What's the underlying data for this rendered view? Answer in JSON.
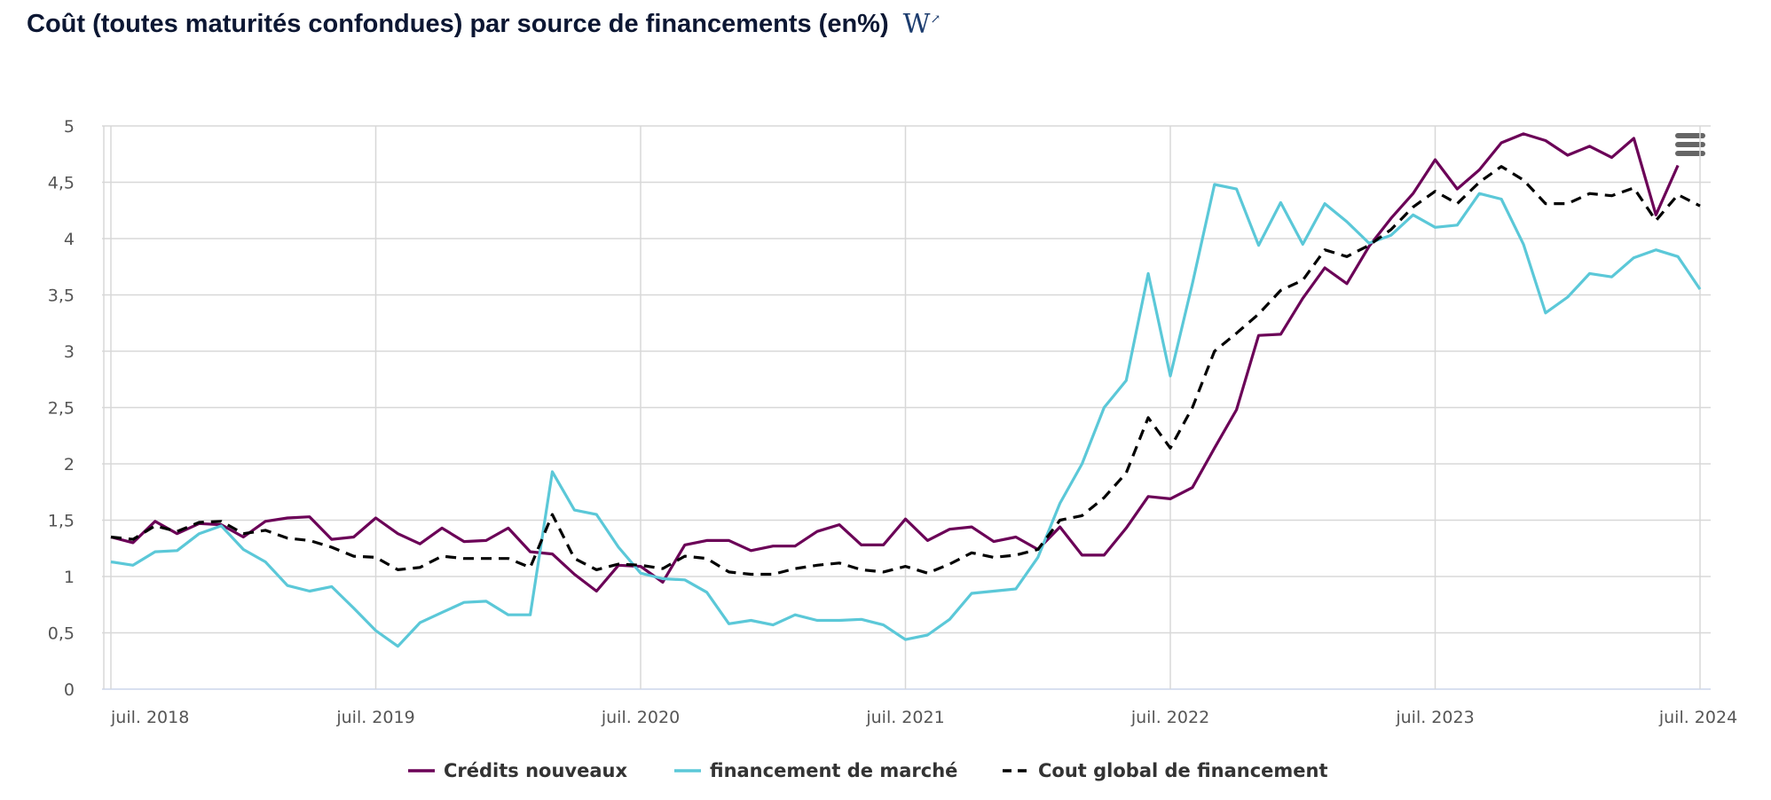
{
  "title": "Coût (toutes maturités confondues) par source de financements (en%)",
  "logo_text": "W",
  "menu_icon": "hamburger-menu-icon",
  "chart_data": {
    "type": "line",
    "title": "Coût (toutes maturités confondues) par source de financements (en%)",
    "x_start": "2018-07",
    "x_frequency": "monthly",
    "x_tick_labels": [
      "juil. 2018",
      "juil. 2019",
      "juil. 2020",
      "juil. 2021",
      "juil. 2022",
      "juil. 2023",
      "juil. 2024"
    ],
    "y_tick_labels": [
      "0",
      "0,5",
      "1",
      "1,5",
      "2",
      "2,5",
      "3",
      "3,5",
      "4",
      "4,5",
      "5"
    ],
    "ylim": [
      0,
      5
    ],
    "grid": true,
    "legend_placement": "bottom",
    "series": [
      {
        "name": "Crédits nouveaux",
        "color": "#6b0057",
        "style": "solid",
        "values": [
          1.35,
          1.3,
          1.49,
          1.38,
          1.47,
          1.46,
          1.35,
          1.49,
          1.52,
          1.53,
          1.33,
          1.35,
          1.52,
          1.38,
          1.29,
          1.43,
          1.31,
          1.32,
          1.43,
          1.22,
          1.2,
          1.02,
          0.87,
          1.1,
          1.09,
          0.95,
          1.28,
          1.32,
          1.32,
          1.23,
          1.27,
          1.27,
          1.4,
          1.46,
          1.28,
          1.28,
          1.51,
          1.32,
          1.42,
          1.44,
          1.31,
          1.35,
          1.24,
          1.44,
          1.19,
          1.19,
          1.43,
          1.71,
          1.69,
          1.79,
          2.14,
          2.48,
          3.14,
          3.15,
          3.47,
          3.74,
          3.6,
          3.93,
          4.18,
          4.4,
          4.7,
          4.44,
          4.61,
          4.85,
          4.93,
          4.87,
          4.74,
          4.82,
          4.72,
          4.89,
          4.21,
          4.65,
          null
        ]
      },
      {
        "name": "financement de marché",
        "color": "#5bc8d8",
        "style": "solid",
        "values": [
          1.13,
          1.1,
          1.22,
          1.23,
          1.38,
          1.45,
          1.24,
          1.13,
          0.92,
          0.87,
          0.91,
          0.72,
          0.52,
          0.38,
          0.59,
          0.68,
          0.77,
          0.78,
          0.66,
          0.66,
          1.93,
          1.59,
          1.55,
          1.26,
          1.03,
          0.98,
          0.97,
          0.86,
          0.58,
          0.61,
          0.57,
          0.66,
          0.61,
          0.61,
          0.62,
          0.57,
          0.44,
          0.48,
          0.62,
          0.85,
          0.87,
          0.89,
          1.17,
          1.65,
          2.0,
          2.5,
          2.74,
          3.69,
          2.78,
          3.6,
          4.48,
          4.44,
          3.94,
          4.32,
          3.95,
          4.31,
          4.15,
          3.96,
          4.03,
          4.21,
          4.1,
          4.12,
          4.4,
          4.35,
          3.95,
          3.34,
          3.48,
          3.69,
          3.66,
          3.83,
          3.9,
          3.84,
          3.55
        ]
      },
      {
        "name": "Cout global de financement",
        "color": "#000000",
        "style": "dashed",
        "values": [
          1.35,
          1.33,
          1.45,
          1.4,
          1.48,
          1.49,
          1.38,
          1.41,
          1.34,
          1.32,
          1.26,
          1.18,
          1.17,
          1.06,
          1.08,
          1.18,
          1.16,
          1.16,
          1.16,
          1.08,
          1.55,
          1.16,
          1.06,
          1.11,
          1.1,
          1.07,
          1.18,
          1.16,
          1.04,
          1.02,
          1.02,
          1.07,
          1.1,
          1.12,
          1.06,
          1.04,
          1.09,
          1.03,
          1.11,
          1.21,
          1.17,
          1.19,
          1.24,
          1.5,
          1.54,
          1.7,
          1.92,
          2.41,
          2.14,
          2.5,
          3.0,
          3.16,
          3.33,
          3.54,
          3.63,
          3.9,
          3.84,
          3.94,
          4.08,
          4.28,
          4.42,
          4.31,
          4.5,
          4.64,
          4.52,
          4.31,
          4.31,
          4.4,
          4.38,
          4.45,
          4.16,
          4.39,
          4.29
        ]
      }
    ]
  }
}
